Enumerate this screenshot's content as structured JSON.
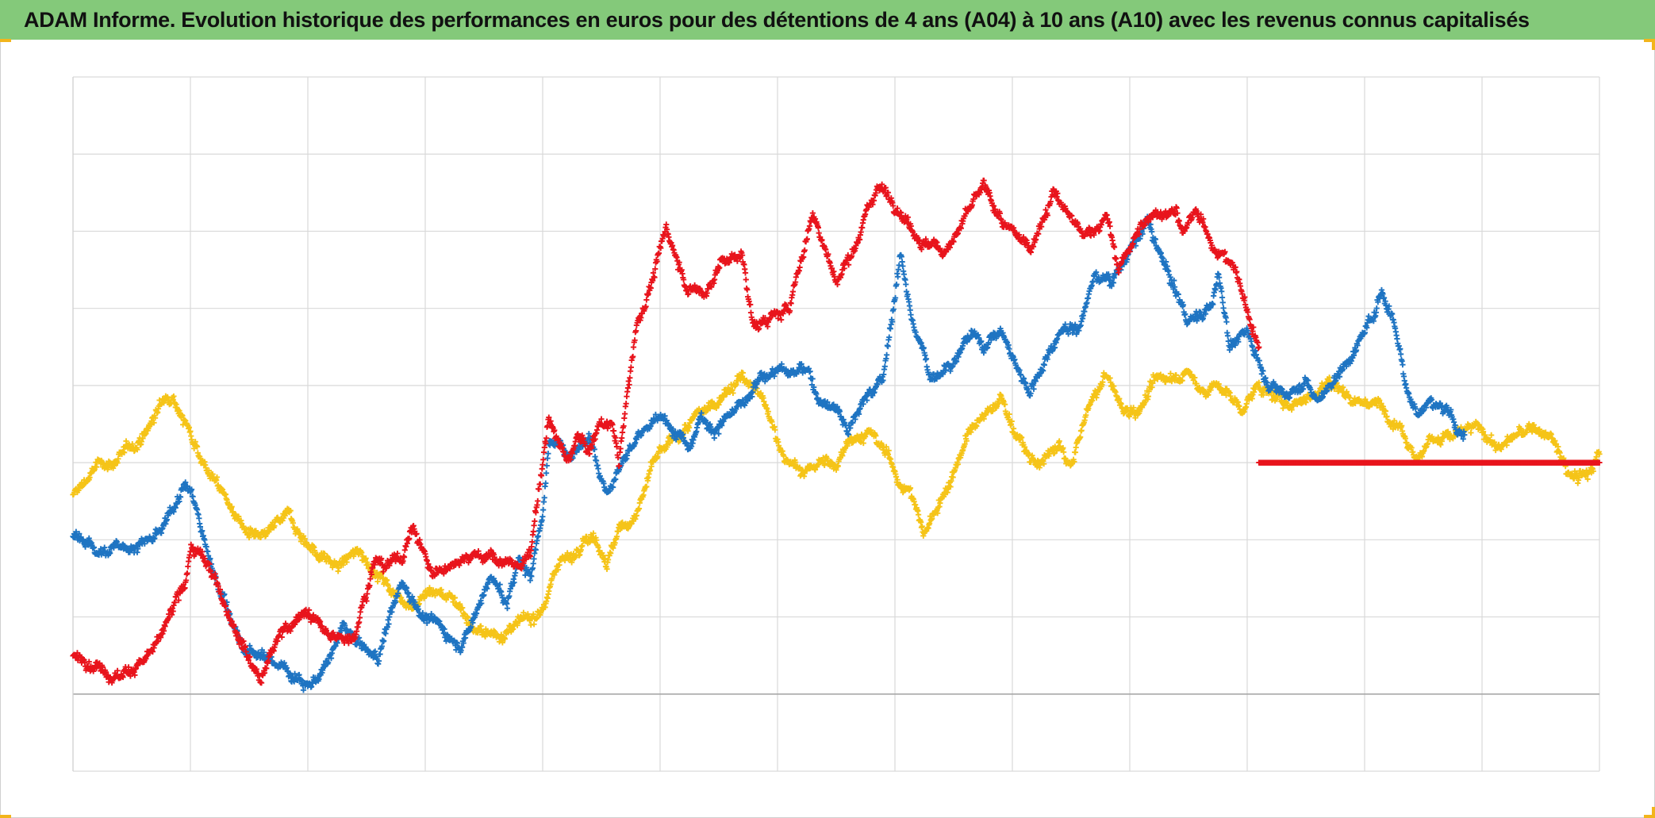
{
  "chart_data": {
    "type": "scatter",
    "title": "ADAM Informe. Evolution historique des performances en euros pour des détentions de 4 ans (A04) à 10 ans (A10) avec les revenus connus capitalisés",
    "xlabel": "",
    "ylabel": "",
    "xlim": [
      0,
      13
    ],
    "ylim": [
      0,
      9
    ],
    "grid": true,
    "legend": "none",
    "marker": "plus",
    "colors": {
      "red": "#e8141c",
      "blue": "#1f74c2",
      "yellow": "#f5c418",
      "title_bg": "#84c97a"
    },
    "series": [
      {
        "color": "red",
        "keypoints": [
          [
            0,
            1.5
          ],
          [
            0.4,
            1.25
          ],
          [
            0.7,
            1.55
          ],
          [
            0.95,
            2.4
          ],
          [
            1.0,
            2.9
          ],
          [
            1.15,
            2.65
          ],
          [
            1.4,
            1.85
          ],
          [
            1.5,
            1.5
          ],
          [
            1.6,
            1.2
          ],
          [
            1.8,
            1.9
          ],
          [
            2.0,
            2.05
          ],
          [
            2.2,
            1.7
          ],
          [
            2.4,
            1.8
          ],
          [
            2.55,
            2.7
          ],
          [
            2.8,
            2.75
          ],
          [
            2.9,
            3.2
          ],
          [
            3.05,
            2.55
          ],
          [
            3.15,
            2.6
          ],
          [
            3.35,
            2.85
          ],
          [
            3.5,
            2.8
          ],
          [
            3.8,
            2.65
          ],
          [
            3.9,
            2.8
          ],
          [
            3.95,
            3.4
          ],
          [
            4.05,
            4.6
          ],
          [
            4.2,
            4.0
          ],
          [
            4.3,
            4.35
          ],
          [
            4.4,
            4.15
          ],
          [
            4.5,
            4.55
          ],
          [
            4.6,
            4.45
          ],
          [
            4.65,
            4.0
          ],
          [
            4.8,
            5.8
          ],
          [
            4.9,
            6.2
          ],
          [
            5.05,
            7.0
          ],
          [
            5.1,
            6.8
          ],
          [
            5.25,
            6.25
          ],
          [
            5.4,
            6.2
          ],
          [
            5.5,
            6.6
          ],
          [
            5.7,
            6.7
          ],
          [
            5.8,
            5.75
          ],
          [
            6.1,
            6.0
          ],
          [
            6.3,
            7.25
          ],
          [
            6.4,
            6.8
          ],
          [
            6.5,
            6.3
          ],
          [
            6.7,
            7.0
          ],
          [
            6.85,
            7.6
          ],
          [
            7.0,
            7.4
          ],
          [
            7.25,
            6.85
          ],
          [
            7.4,
            6.75
          ],
          [
            7.5,
            6.9
          ],
          [
            7.75,
            7.55
          ],
          [
            7.85,
            7.3
          ],
          [
            7.95,
            7.0
          ],
          [
            8.15,
            6.8
          ],
          [
            8.35,
            7.5
          ],
          [
            8.6,
            6.9
          ],
          [
            8.8,
            7.2
          ],
          [
            8.9,
            6.5
          ],
          [
            9.0,
            6.8
          ],
          [
            9.2,
            7.25
          ],
          [
            9.4,
            7.3
          ],
          [
            9.45,
            6.9
          ],
          [
            9.55,
            7.25
          ],
          [
            9.75,
            6.75
          ],
          [
            9.9,
            6.5
          ],
          [
            10.0,
            5.95
          ],
          [
            10.1,
            5.5
          ]
        ]
      },
      {
        "color": "blue",
        "keypoints": [
          [
            0,
            3.05
          ],
          [
            0.3,
            2.85
          ],
          [
            0.55,
            2.95
          ],
          [
            0.75,
            3.05
          ],
          [
            0.85,
            3.4
          ],
          [
            0.95,
            3.8
          ],
          [
            1.05,
            3.4
          ],
          [
            1.15,
            2.8
          ],
          [
            1.3,
            2.2
          ],
          [
            1.45,
            1.55
          ],
          [
            1.6,
            1.5
          ],
          [
            1.8,
            1.35
          ],
          [
            2.0,
            1.15
          ],
          [
            2.15,
            1.3
          ],
          [
            2.3,
            1.85
          ],
          [
            2.45,
            1.6
          ],
          [
            2.6,
            1.45
          ],
          [
            2.7,
            2.05
          ],
          [
            2.8,
            2.45
          ],
          [
            2.95,
            2.1
          ],
          [
            3.1,
            1.9
          ],
          [
            3.3,
            1.65
          ],
          [
            3.4,
            1.95
          ],
          [
            3.55,
            2.55
          ],
          [
            3.7,
            2.15
          ],
          [
            3.8,
            2.75
          ],
          [
            3.9,
            2.55
          ],
          [
            4.0,
            3.4
          ],
          [
            4.05,
            4.25
          ],
          [
            4.25,
            4.15
          ],
          [
            4.4,
            4.35
          ],
          [
            4.55,
            3.65
          ],
          [
            4.65,
            3.95
          ],
          [
            4.8,
            4.3
          ],
          [
            4.95,
            4.55
          ],
          [
            5.1,
            4.5
          ],
          [
            5.25,
            4.25
          ],
          [
            5.35,
            4.65
          ],
          [
            5.45,
            4.45
          ],
          [
            5.6,
            4.6
          ],
          [
            5.75,
            4.8
          ],
          [
            5.85,
            5.05
          ],
          [
            6.0,
            5.25
          ],
          [
            6.15,
            5.15
          ],
          [
            6.25,
            5.2
          ],
          [
            6.35,
            4.85
          ],
          [
            6.5,
            4.75
          ],
          [
            6.6,
            4.45
          ],
          [
            6.75,
            4.85
          ],
          [
            6.9,
            5.1
          ],
          [
            7.05,
            6.7
          ],
          [
            7.15,
            5.85
          ],
          [
            7.3,
            5.1
          ],
          [
            7.5,
            5.35
          ],
          [
            7.65,
            5.7
          ],
          [
            7.75,
            5.5
          ],
          [
            7.9,
            5.75
          ],
          [
            8.0,
            5.35
          ],
          [
            8.15,
            4.95
          ],
          [
            8.25,
            5.25
          ],
          [
            8.45,
            5.85
          ],
          [
            8.55,
            5.7
          ],
          [
            8.7,
            6.4
          ],
          [
            8.85,
            6.4
          ],
          [
            9.0,
            6.75
          ],
          [
            9.15,
            7.1
          ],
          [
            9.25,
            6.7
          ],
          [
            9.4,
            6.2
          ],
          [
            9.5,
            5.85
          ],
          [
            9.7,
            6.0
          ],
          [
            9.75,
            6.5
          ],
          [
            9.85,
            5.55
          ],
          [
            10.0,
            5.7
          ],
          [
            10.15,
            5.1
          ],
          [
            10.35,
            4.9
          ],
          [
            10.5,
            5.05
          ],
          [
            10.6,
            4.8
          ],
          [
            10.75,
            5.1
          ],
          [
            10.95,
            5.55
          ],
          [
            11.15,
            6.2
          ],
          [
            11.25,
            5.85
          ],
          [
            11.35,
            5.05
          ],
          [
            11.45,
            4.65
          ],
          [
            11.55,
            4.8
          ],
          [
            11.65,
            4.75
          ],
          [
            11.75,
            4.5
          ],
          [
            11.85,
            4.35
          ]
        ]
      },
      {
        "color": "yellow",
        "keypoints": [
          [
            0,
            3.55
          ],
          [
            0.2,
            3.95
          ],
          [
            0.4,
            4.05
          ],
          [
            0.6,
            4.35
          ],
          [
            0.75,
            4.75
          ],
          [
            0.85,
            4.95
          ],
          [
            0.95,
            4.55
          ],
          [
            1.05,
            4.25
          ],
          [
            1.15,
            3.9
          ],
          [
            1.3,
            3.55
          ],
          [
            1.45,
            3.15
          ],
          [
            1.6,
            2.95
          ],
          [
            1.75,
            3.2
          ],
          [
            1.85,
            3.3
          ],
          [
            1.95,
            3.05
          ],
          [
            2.1,
            2.8
          ],
          [
            2.25,
            2.65
          ],
          [
            2.45,
            2.85
          ],
          [
            2.6,
            2.55
          ],
          [
            2.75,
            2.3
          ],
          [
            2.9,
            2.2
          ],
          [
            3.05,
            2.35
          ],
          [
            3.25,
            2.25
          ],
          [
            3.45,
            1.8
          ],
          [
            3.55,
            1.75
          ],
          [
            3.75,
            1.85
          ],
          [
            3.9,
            1.95
          ],
          [
            4.05,
            2.3
          ],
          [
            4.15,
            2.8
          ],
          [
            4.25,
            2.75
          ],
          [
            4.35,
            3.1
          ],
          [
            4.45,
            3.05
          ],
          [
            4.55,
            2.75
          ],
          [
            4.65,
            3.1
          ],
          [
            4.8,
            3.35
          ],
          [
            4.95,
            4.0
          ],
          [
            5.1,
            4.25
          ],
          [
            5.3,
            4.55
          ],
          [
            5.45,
            4.75
          ],
          [
            5.55,
            4.95
          ],
          [
            5.7,
            5.1
          ],
          [
            5.85,
            4.85
          ],
          [
            6.0,
            4.3
          ],
          [
            6.1,
            4.0
          ],
          [
            6.2,
            3.85
          ],
          [
            6.35,
            4.0
          ],
          [
            6.5,
            3.95
          ],
          [
            6.6,
            4.35
          ],
          [
            6.8,
            4.35
          ],
          [
            6.95,
            4.05
          ],
          [
            7.05,
            3.75
          ],
          [
            7.15,
            3.55
          ],
          [
            7.25,
            3.05
          ],
          [
            7.35,
            3.4
          ],
          [
            7.45,
            3.7
          ],
          [
            7.6,
            4.3
          ],
          [
            7.75,
            4.55
          ],
          [
            7.9,
            4.85
          ],
          [
            8.0,
            4.5
          ],
          [
            8.15,
            4.0
          ],
          [
            8.25,
            4.0
          ],
          [
            8.4,
            4.2
          ],
          [
            8.5,
            3.95
          ],
          [
            8.65,
            4.7
          ],
          [
            8.8,
            5.15
          ],
          [
            8.95,
            4.65
          ],
          [
            9.1,
            4.75
          ],
          [
            9.2,
            5.0
          ],
          [
            9.35,
            5.15
          ],
          [
            9.5,
            5.15
          ],
          [
            9.6,
            4.95
          ],
          [
            9.75,
            5.0
          ],
          [
            9.85,
            4.85
          ],
          [
            9.95,
            4.7
          ],
          [
            10.1,
            5.0
          ],
          [
            10.3,
            4.75
          ],
          [
            10.5,
            4.85
          ],
          [
            10.7,
            5.05
          ],
          [
            10.9,
            4.85
          ],
          [
            11.1,
            4.75
          ],
          [
            11.3,
            4.55
          ],
          [
            11.45,
            4.05
          ],
          [
            11.55,
            4.3
          ],
          [
            11.75,
            4.35
          ],
          [
            11.95,
            4.45
          ],
          [
            12.15,
            4.2
          ],
          [
            12.3,
            4.35
          ],
          [
            12.45,
            4.45
          ],
          [
            12.6,
            4.3
          ],
          [
            12.75,
            3.8
          ],
          [
            12.9,
            3.85
          ],
          [
            13.0,
            4.1
          ]
        ]
      },
      {
        "color": "red",
        "flat": true,
        "from": 10.1,
        "to": 13.0,
        "y": 4.0
      }
    ]
  }
}
